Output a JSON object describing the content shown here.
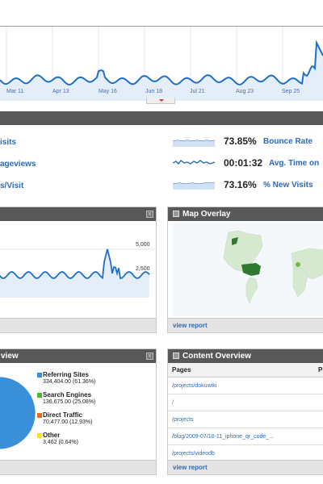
{
  "main_chart": {
    "x_ticks": [
      "Mar 11",
      "Apr 13",
      "May 16",
      "Jun 18",
      "Jul 21",
      "Aug 23",
      "Sep 25"
    ]
  },
  "metrics": {
    "left": [
      {
        "label": "isits"
      },
      {
        "label": "ageviews"
      },
      {
        "label": "s/Visit"
      }
    ],
    "right": [
      {
        "value": "73.85%",
        "label": "Bounce Rate"
      },
      {
        "value": "00:01:32",
        "label": "Avg. Time on"
      },
      {
        "value": "73.16%",
        "label": "% New Visits"
      }
    ]
  },
  "panels": {
    "visitors": {
      "y_ticks": [
        "5,000",
        "2,500"
      ]
    },
    "map": {
      "title": "Map Overlay",
      "footer": "view report"
    },
    "traffic": {
      "title": "view"
    },
    "content": {
      "title": "Content Overview",
      "column_pages": "Pages",
      "column_p": "P",
      "rows": [
        "/projects/dokuwiki",
        "/",
        "/projects",
        "/blog/2009-07/10-11_iphone_qr_code_...",
        "/projects/videodb"
      ],
      "footer": "view report"
    }
  },
  "chart_data": {
    "type": "pie",
    "title": "",
    "categories": [
      "Referring Sites",
      "Search Engines",
      "Direct Traffic",
      "Other"
    ],
    "values": [
      334404,
      136675,
      70477,
      3462
    ],
    "percent_labels": [
      "334,404.00 (61.36%)",
      "136,675.00 (25.08%)",
      "70,477.00 (12.93%)",
      "3,462 (0.64%)"
    ],
    "colors": [
      "#3a8fd9",
      "#4cb82f",
      "#f06a1d",
      "#f7e21b"
    ]
  }
}
